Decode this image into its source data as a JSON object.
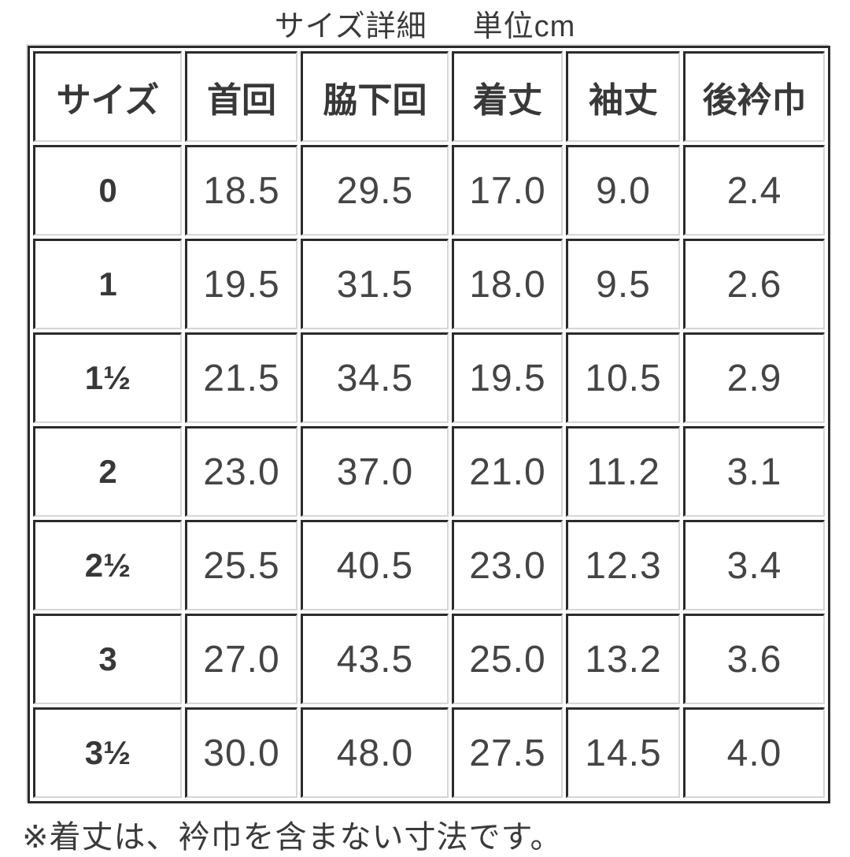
{
  "title": {
    "main": "サイズ詳細",
    "unit": "単位cm"
  },
  "table": {
    "headers": [
      "サイズ",
      "首回",
      "脇下回",
      "着丈",
      "袖丈",
      "後衿巾"
    ],
    "rows": [
      [
        "0",
        "18.5",
        "29.5",
        "17.0",
        "9.0",
        "2.4"
      ],
      [
        "1",
        "19.5",
        "31.5",
        "18.0",
        "9.5",
        "2.6"
      ],
      [
        "1½",
        "21.5",
        "34.5",
        "19.5",
        "10.5",
        "2.9"
      ],
      [
        "2",
        "23.0",
        "37.0",
        "21.0",
        "11.2",
        "3.1"
      ],
      [
        "2½",
        "25.5",
        "40.5",
        "23.0",
        "12.3",
        "3.4"
      ],
      [
        "3",
        "27.0",
        "43.5",
        "25.0",
        "13.2",
        "3.6"
      ],
      [
        "3½",
        "30.0",
        "48.0",
        "27.5",
        "14.5",
        "4.0"
      ]
    ]
  },
  "footnote": "※着丈は、衿巾を含まない寸法です。",
  "colors": {
    "border_dark": "#2b2b2b",
    "border_light": "#d6d6d6",
    "text": "#3c3c3c",
    "background": "#ffffff"
  }
}
